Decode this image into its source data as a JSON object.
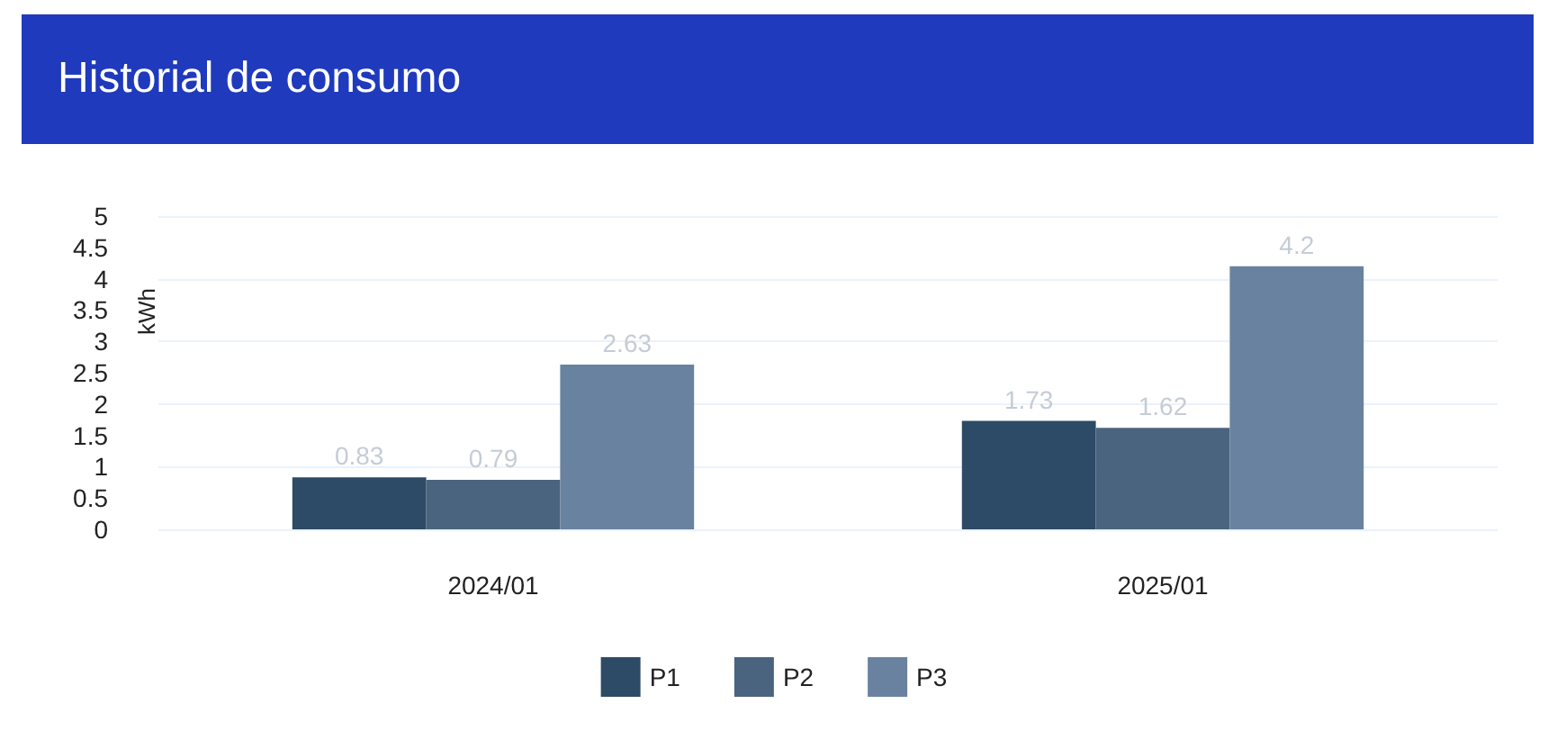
{
  "chart_data": {
    "type": "bar",
    "title": "Historial de consumo",
    "ylabel": "kWh",
    "categories": [
      "2024/01",
      "2025/01"
    ],
    "series": [
      {
        "name": "P1",
        "color": "#2d4a66",
        "values": [
          0.83,
          1.73
        ]
      },
      {
        "name": "P2",
        "color": "#4a647f",
        "values": [
          0.79,
          1.62
        ]
      },
      {
        "name": "P3",
        "color": "#68829f",
        "values": [
          2.63,
          4.2
        ]
      }
    ],
    "ylim": [
      0,
      5
    ],
    "yticks": [
      0,
      0.5,
      1,
      1.5,
      2,
      2.5,
      3,
      3.5,
      4,
      4.5,
      5
    ],
    "grid": "y",
    "legend": "bottom",
    "data_labels": true
  }
}
